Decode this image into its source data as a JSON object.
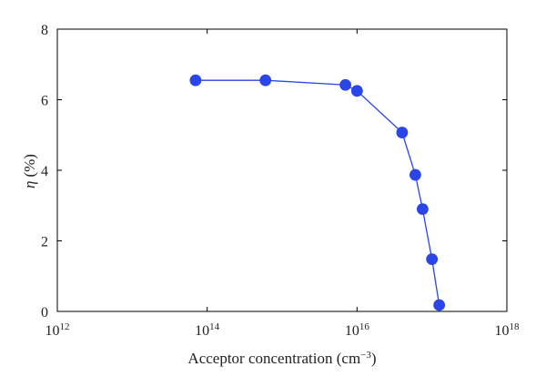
{
  "chart_data": {
    "type": "line",
    "title": "",
    "xlabel": {
      "base": "Acceptor concentration (cm",
      "exponent": "−3",
      "suffix": ")"
    },
    "ylabel": {
      "symbol": "η",
      "unit": "(%)"
    },
    "x_scale": "log",
    "xlim": [
      1000000000000.0,
      1e+18
    ],
    "ylim": [
      0,
      8
    ],
    "grid": false,
    "legend": "none",
    "x_ticks": [
      {
        "base": "10",
        "exponent": "12",
        "value": 1000000000000.0
      },
      {
        "base": "10",
        "exponent": "14",
        "value": 100000000000000.0
      },
      {
        "base": "10",
        "exponent": "16",
        "value": 1e+16
      },
      {
        "base": "10",
        "exponent": "18",
        "value": 1e+18
      }
    ],
    "y_ticks": [
      {
        "label": "0",
        "value": 0
      },
      {
        "label": "2",
        "value": 2
      },
      {
        "label": "4",
        "value": 4
      },
      {
        "label": "6",
        "value": 6
      },
      {
        "label": "8",
        "value": 8
      }
    ],
    "series": [
      {
        "color": "#2a45e8",
        "x": [
          70000000000000.0,
          600000000000000.0,
          7000000000000000.0,
          1e+16,
          4e+16,
          6e+16,
          7.5e+16,
          1e+17,
          1.25e+17
        ],
        "y": [
          6.55,
          6.55,
          6.42,
          6.25,
          5.07,
          3.87,
          2.9,
          1.48,
          0.18
        ]
      }
    ]
  }
}
